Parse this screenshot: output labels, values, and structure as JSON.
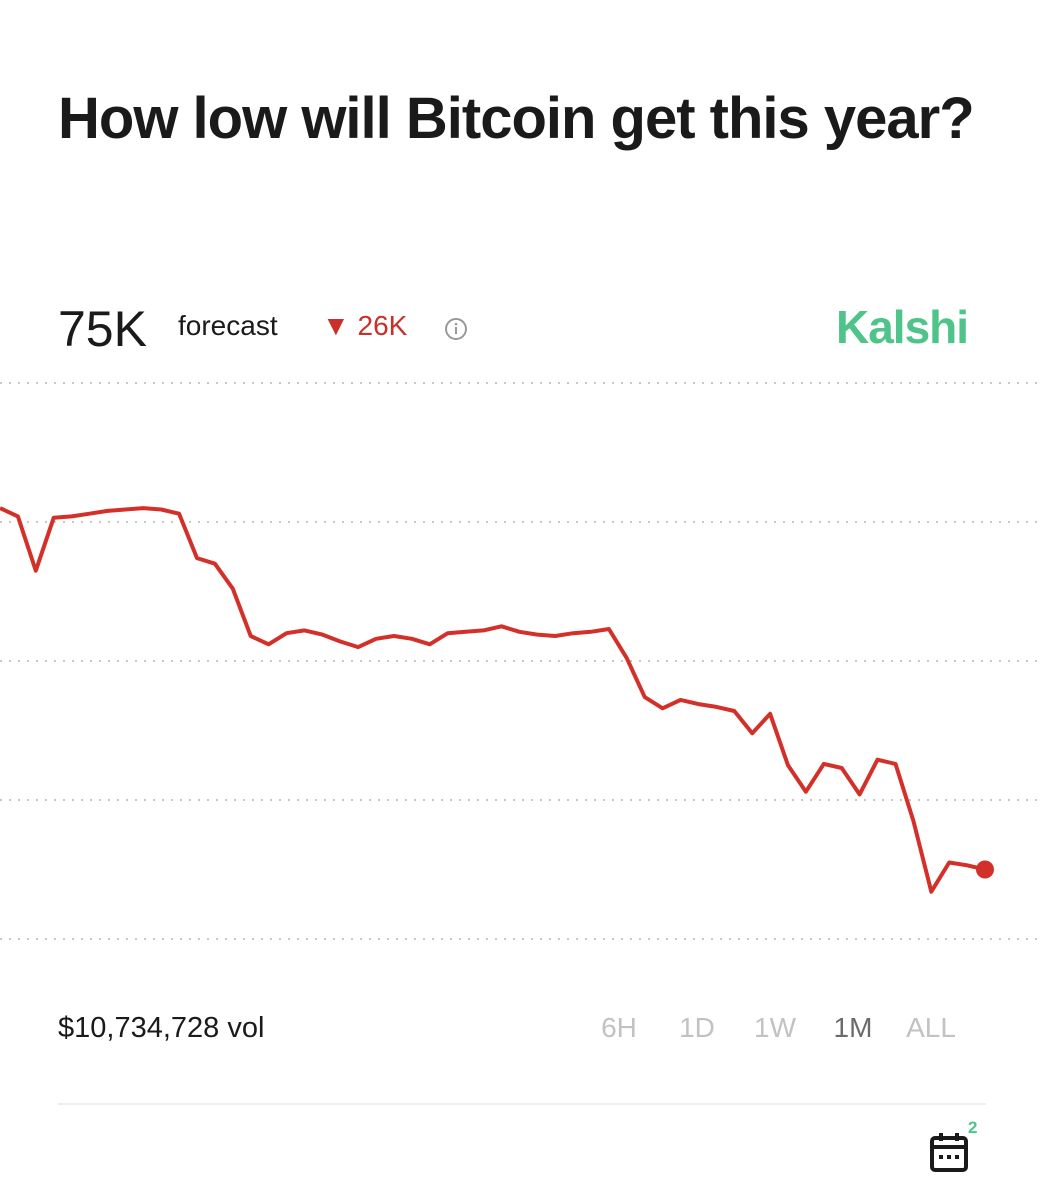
{
  "header": {
    "title": "How low will Bitcoin get this year?"
  },
  "stats": {
    "forecast_value": "75K",
    "forecast_label": "forecast",
    "change": "26K",
    "brand": "Kalshi"
  },
  "chart_data": {
    "type": "line",
    "color": "#d3302a",
    "values": [
      101,
      100.4,
      96.5,
      100.3,
      100.4,
      100.6,
      100.8,
      100.9,
      101,
      100.9,
      100.6,
      97.4,
      97.0,
      95.2,
      91.8,
      91.2,
      92.0,
      92.2,
      91.9,
      91.4,
      91.0,
      91.6,
      91.8,
      91.6,
      91.2,
      92.0,
      92.1,
      92.2,
      92.5,
      92.1,
      91.9,
      91.8,
      92.0,
      92.1,
      92.3,
      90.2,
      87.4,
      86.6,
      87.2,
      86.9,
      86.7,
      86.4,
      84.8,
      86.2,
      82.5,
      80.6,
      82.6,
      82.3,
      80.4,
      82.9,
      82.6,
      78.5,
      73.4,
      75.5,
      75.3,
      75.0
    ],
    "ylim": [
      70,
      110
    ],
    "yticks": [
      70,
      80,
      90,
      100,
      110
    ],
    "grid": true
  },
  "footer": {
    "volume": "$10,734,728 vol",
    "ranges": [
      "6H",
      "1D",
      "1W",
      "1M",
      "ALL"
    ],
    "selected_range": "1M",
    "badge": "2"
  }
}
